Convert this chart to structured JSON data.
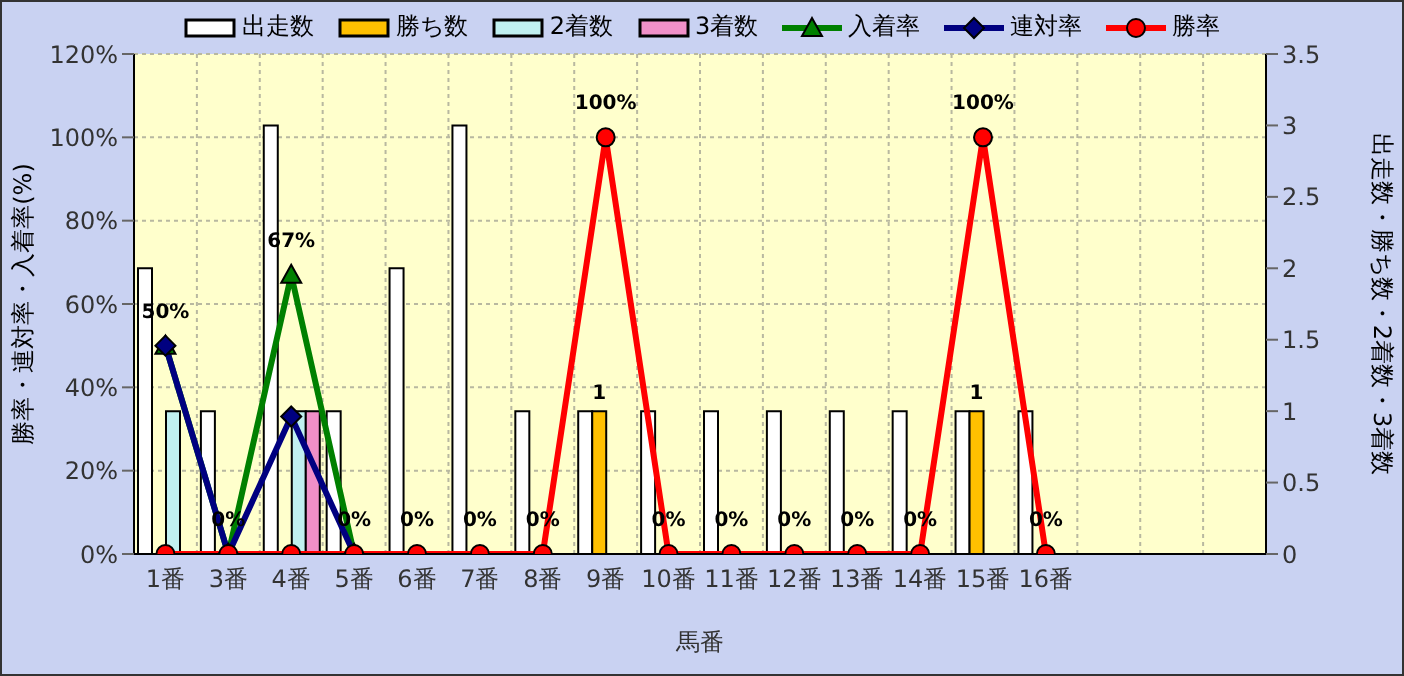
{
  "chart_data": {
    "type": "bar",
    "xlabel": "馬番",
    "ylabel": "勝率・連対率・入着率(%)",
    "y2label": "出走数・勝ち数・2着数・3着数",
    "categories": [
      "1番",
      "3番",
      "4番",
      "5番",
      "6番",
      "7番",
      "8番",
      "9番",
      "10番",
      "11番",
      "12番",
      "13番",
      "14番",
      "15番",
      "16番",
      null,
      null,
      null
    ],
    "series": [
      {
        "name": "出走数",
        "axis": "y2",
        "color": "#ffffff",
        "values": [
          2,
          1,
          3,
          1,
          2,
          3,
          1,
          1,
          1,
          1,
          1,
          1,
          1,
          1,
          1,
          null,
          null,
          null
        ]
      },
      {
        "name": "勝ち数",
        "axis": "y2",
        "color": "#ffc000",
        "values": [
          0,
          0,
          0,
          0,
          0,
          0,
          0,
          1,
          0,
          0,
          0,
          0,
          0,
          1,
          0,
          null,
          null,
          null
        ],
        "value_labels": [
          null,
          null,
          null,
          null,
          null,
          null,
          null,
          "1",
          null,
          null,
          null,
          null,
          null,
          "1",
          null,
          null,
          null,
          null
        ]
      },
      {
        "name": "2着数",
        "axis": "y2",
        "color": "#c0f0f0",
        "values": [
          1,
          0,
          1,
          0,
          0,
          0,
          0,
          0,
          0,
          0,
          0,
          0,
          0,
          0,
          0,
          null,
          null,
          null
        ]
      },
      {
        "name": "3着数",
        "axis": "y2",
        "color": "#f090c8",
        "values": [
          0,
          0,
          1,
          0,
          0,
          0,
          0,
          0,
          0,
          0,
          0,
          0,
          0,
          0,
          0,
          null,
          null,
          null
        ]
      },
      {
        "name": "入着率",
        "type": "line",
        "axis": "y",
        "color": "#008000",
        "marker": "triangle",
        "values": [
          50,
          0,
          67,
          0,
          null,
          null,
          null,
          null,
          null,
          null,
          null,
          null,
          null,
          null,
          null,
          null,
          null,
          null
        ],
        "value_labels": [
          "50%",
          "0%",
          "67%",
          "0%",
          null,
          null,
          null,
          null,
          null,
          null,
          null,
          null,
          null,
          null,
          null,
          null,
          null,
          null
        ]
      },
      {
        "name": "連対率",
        "type": "line",
        "axis": "y",
        "color": "#000080",
        "marker": "diamond",
        "values": [
          50,
          0,
          33,
          0,
          null,
          null,
          null,
          null,
          null,
          null,
          null,
          null,
          null,
          null,
          null,
          null,
          null,
          null
        ]
      },
      {
        "name": "勝率",
        "type": "line",
        "axis": "y",
        "color": "#ff0000",
        "marker": "circle",
        "values": [
          0,
          0,
          0,
          0,
          0,
          0,
          0,
          100,
          0,
          0,
          0,
          0,
          0,
          100,
          0,
          null,
          null,
          null
        ],
        "value_labels": [
          null,
          null,
          null,
          null,
          "0%",
          "0%",
          "0%",
          "100%",
          "0%",
          "0%",
          "0%",
          "0%",
          "0%",
          "100%",
          "0%",
          null,
          null,
          null
        ]
      }
    ],
    "ylim": [
      0,
      120
    ],
    "yticks": [
      {
        "value": 0,
        "label": "0%"
      },
      {
        "value": 20,
        "label": "20%"
      },
      {
        "value": 40,
        "label": "40%"
      },
      {
        "value": 60,
        "label": "60%"
      },
      {
        "value": 80,
        "label": "80%"
      },
      {
        "value": 100,
        "label": "100%"
      },
      {
        "value": 120,
        "label": "120%"
      }
    ],
    "y2lim": [
      0,
      3.5
    ],
    "y2ticks": [
      0,
      0.5,
      1,
      1.5,
      2,
      2.5,
      3,
      3.5
    ],
    "grid": true,
    "legend": "top"
  }
}
